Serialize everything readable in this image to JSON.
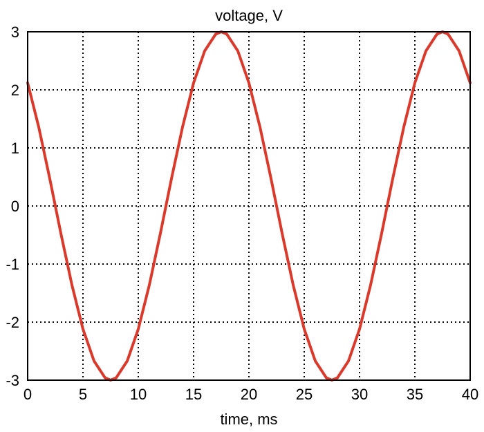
{
  "chart_data": {
    "type": "line",
    "title": "voltage, V",
    "xlabel": "time, ms",
    "ylabel": "",
    "xlim": [
      0,
      40
    ],
    "ylim": [
      -3,
      3
    ],
    "xticks": [
      0,
      5,
      10,
      15,
      20,
      25,
      30,
      35,
      40
    ],
    "yticks": [
      -3,
      -2,
      -1,
      0,
      1,
      2,
      3
    ],
    "xtick_labels": [
      "0",
      "5",
      "10",
      "15",
      "20",
      "25",
      "30",
      "35",
      "40"
    ],
    "ytick_labels": [
      "-3",
      "-2",
      "-1",
      "0",
      "1",
      "2",
      "3"
    ],
    "grid": true,
    "grid_style": "dotted",
    "series": [
      {
        "color": "#d93a2b",
        "x": [
          0,
          1,
          2,
          2.5,
          3,
          4,
          5,
          6,
          7,
          7.5,
          8,
          9,
          10,
          11,
          12,
          12.5,
          13,
          14,
          15,
          16,
          17,
          17.5,
          18,
          19,
          20,
          21,
          22,
          22.5,
          23,
          24,
          25,
          26,
          27,
          27.5,
          28,
          29,
          30,
          31,
          32,
          32.5,
          33,
          34,
          35,
          36,
          37,
          37.5,
          38,
          39,
          40
        ],
        "y": [
          2.12,
          1.36,
          0.47,
          0.0,
          -0.47,
          -1.36,
          -2.12,
          -2.67,
          -2.96,
          -3.0,
          -2.96,
          -2.67,
          -2.12,
          -1.36,
          -0.47,
          0.0,
          0.47,
          1.36,
          2.12,
          2.67,
          2.96,
          3.0,
          2.96,
          2.67,
          2.12,
          1.36,
          0.47,
          0.0,
          -0.47,
          -1.36,
          -2.12,
          -2.67,
          -2.96,
          -3.0,
          -2.96,
          -2.67,
          -2.12,
          -1.36,
          -0.47,
          0.0,
          0.47,
          1.36,
          2.12,
          2.67,
          2.96,
          3.0,
          2.96,
          2.67,
          2.12
        ]
      }
    ]
  }
}
